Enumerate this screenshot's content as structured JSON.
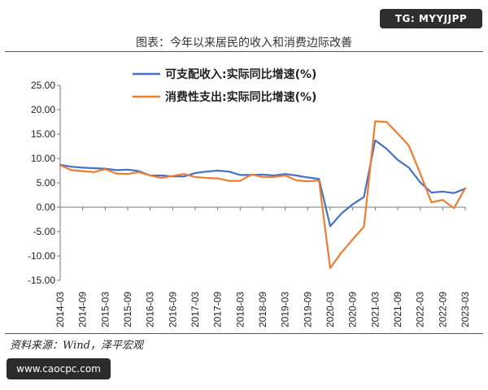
{
  "watermark_top": "TG: MYYJJPP",
  "watermark_bottom": "www.caocpc.com",
  "source": "资料来源：Wind，泽平宏观",
  "colors": {
    "income": "#4472c4",
    "consumption": "#ed7d31"
  },
  "chart_data": {
    "type": "line",
    "title": "图表：今年以来居民的收入和消费边际改善",
    "xlabel": "",
    "ylabel": "",
    "ylim": [
      -15,
      25
    ],
    "yticks": [
      25,
      20,
      15,
      10,
      5,
      0,
      -5,
      -10,
      -15
    ],
    "ytick_labels": [
      "25.00",
      "20.00",
      "15.00",
      "10.00",
      "5.00",
      "0.00",
      "-5.00",
      "-10.00",
      "-15.00"
    ],
    "x_start": "2014-03",
    "x_tick_labels": [
      "2014-03",
      "2014-09",
      "2015-03",
      "2015-09",
      "2016-03",
      "2016-09",
      "2017-03",
      "2017-09",
      "2018-03",
      "2018-09",
      "2019-03",
      "2019-09",
      "2020-03",
      "2020-09",
      "2021-03",
      "2021-09",
      "2022-03",
      "2022-09",
      "2023-03"
    ],
    "quarter_labels": [
      "2014Q1",
      "2014Q2",
      "2014Q3",
      "2014Q4",
      "2015Q1",
      "2015Q2",
      "2015Q3",
      "2015Q4",
      "2016Q1",
      "2016Q2",
      "2016Q3",
      "2016Q4",
      "2017Q1",
      "2017Q2",
      "2017Q3",
      "2017Q4",
      "2018Q1",
      "2018Q2",
      "2018Q3",
      "2018Q4",
      "2019Q1",
      "2019Q2",
      "2019Q3",
      "2019Q4",
      "2020Q1",
      "2020Q2",
      "2020Q3",
      "2020Q4",
      "2021Q1",
      "2021Q2",
      "2021Q3",
      "2021Q4",
      "2022Q1",
      "2022Q2",
      "2022Q3",
      "2022Q4",
      "2023Q1"
    ],
    "legend_position": "top-center",
    "series": [
      {
        "name": "可支配收入:实际同比增速(%)",
        "values": [
          8.7,
          8.3,
          8.1,
          8.0,
          7.9,
          7.6,
          7.7,
          7.4,
          6.5,
          6.5,
          6.3,
          6.3,
          7.0,
          7.3,
          7.5,
          7.3,
          6.6,
          6.6,
          6.7,
          6.5,
          6.8,
          6.5,
          6.1,
          5.8,
          -3.9,
          -1.3,
          0.6,
          2.1,
          13.7,
          12.0,
          9.7,
          8.1,
          5.1,
          3.0,
          3.2,
          2.9,
          3.8
        ]
      },
      {
        "name": "消费性支出:实际同比增速(%)",
        "values": [
          8.6,
          7.6,
          7.4,
          7.2,
          7.8,
          6.9,
          6.8,
          7.2,
          6.5,
          6.0,
          6.4,
          6.8,
          6.2,
          6.0,
          5.9,
          5.4,
          5.4,
          6.7,
          6.2,
          6.2,
          6.5,
          5.5,
          5.3,
          5.5,
          -12.5,
          -9.3,
          -6.6,
          -4.0,
          17.6,
          17.5,
          15.1,
          12.6,
          6.9,
          1.0,
          1.5,
          -0.2,
          3.9
        ]
      }
    ]
  }
}
